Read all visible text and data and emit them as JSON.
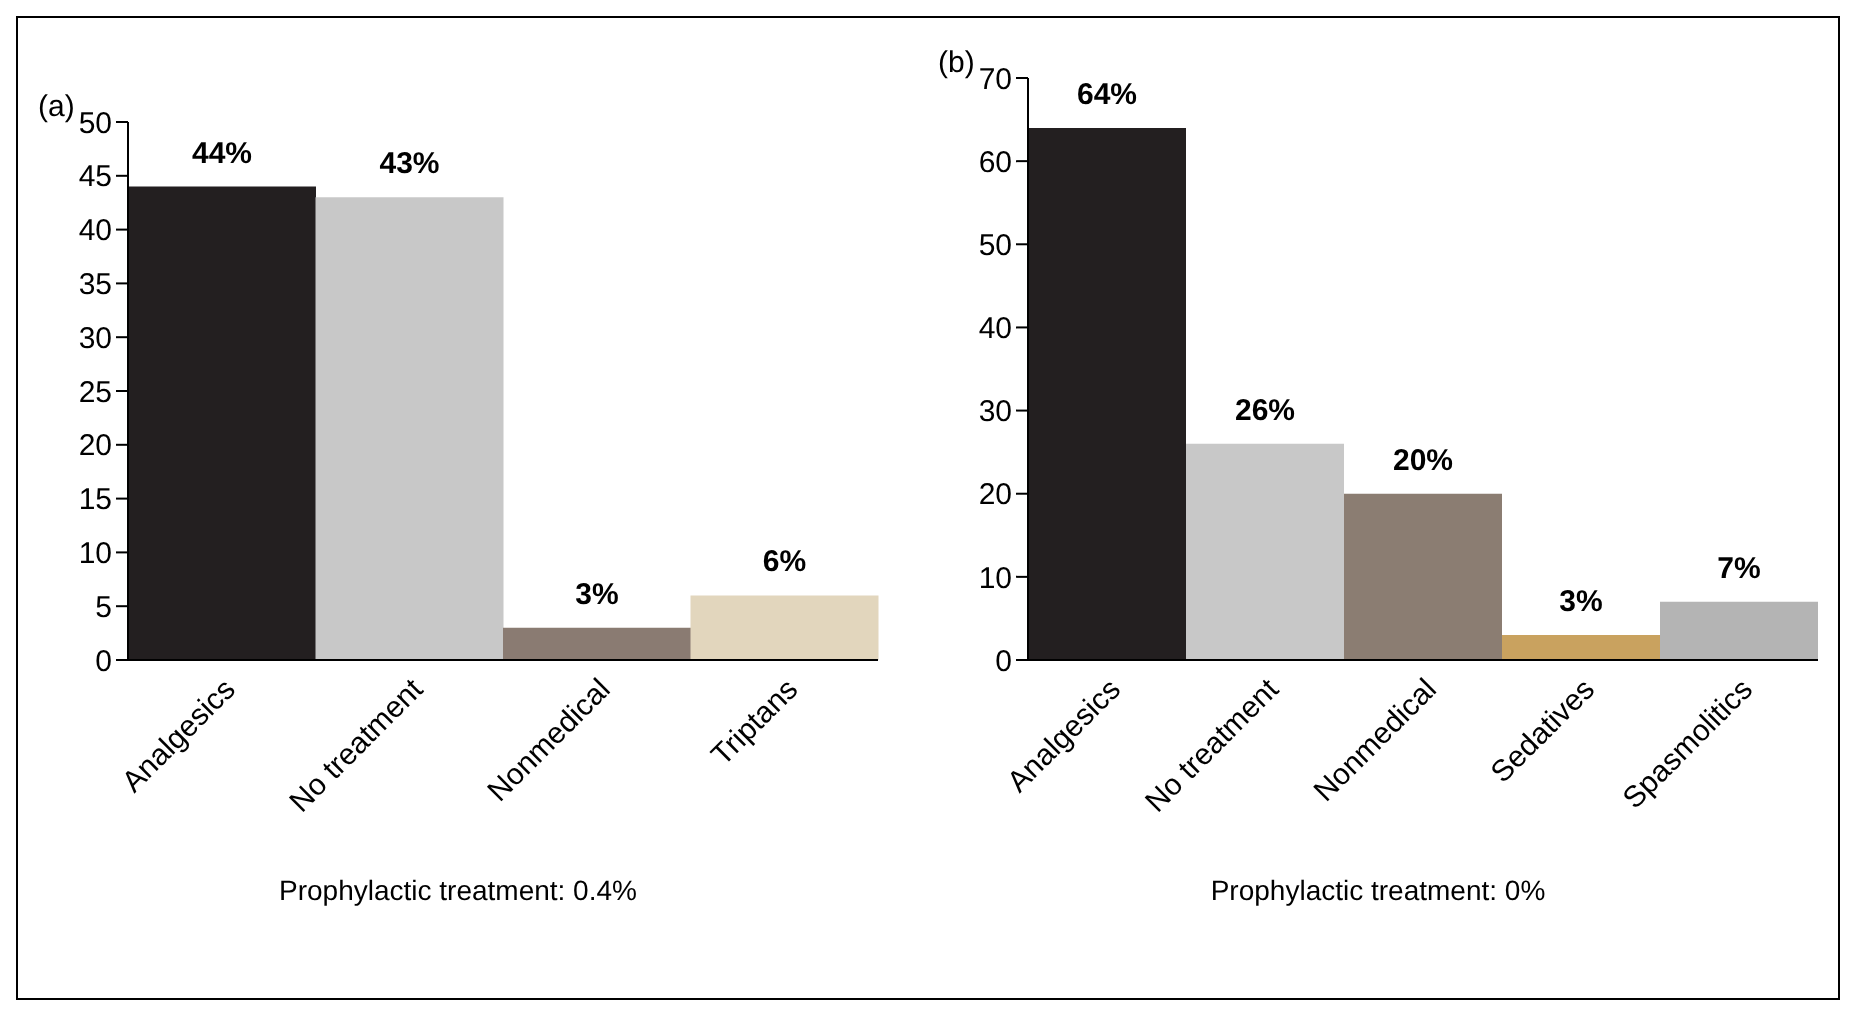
{
  "chart_data": [
    {
      "type": "bar",
      "title": "(a)",
      "categories": [
        "Analgesics",
        "No treatment",
        "Nonmedical",
        "Triptans"
      ],
      "values": [
        44,
        43,
        3,
        6
      ],
      "colors": [
        "#231f20",
        "#c8c8c8",
        "#8a7b72",
        "#e2d6bd"
      ],
      "value_labels": [
        "44%",
        "43%",
        "3%",
        "6%"
      ],
      "ylim": [
        0,
        50
      ],
      "yticks": [
        0,
        5,
        10,
        15,
        20,
        25,
        30,
        35,
        40,
        45,
        50
      ],
      "grid": false,
      "legend": false,
      "annotations": [
        "Prophylactic treatment: 0.4%"
      ]
    },
    {
      "type": "bar",
      "title": "(b)",
      "categories": [
        "Analgesics",
        "No treatment",
        "Nonmedical",
        "Sedatives",
        "Spasmolitics"
      ],
      "values": [
        64,
        26,
        20,
        3,
        7
      ],
      "colors": [
        "#231f20",
        "#c8c8c8",
        "#8b7d72",
        "#c9a25f",
        "#b4b4b4"
      ],
      "value_labels": [
        "64%",
        "26%",
        "20%",
        "3%",
        "7%"
      ],
      "ylim": [
        0,
        70
      ],
      "yticks": [
        0,
        10,
        20,
        30,
        40,
        50,
        60,
        70
      ],
      "grid": false,
      "legend": false,
      "annotations": [
        "Prophylactic treatment: 0%"
      ]
    }
  ]
}
